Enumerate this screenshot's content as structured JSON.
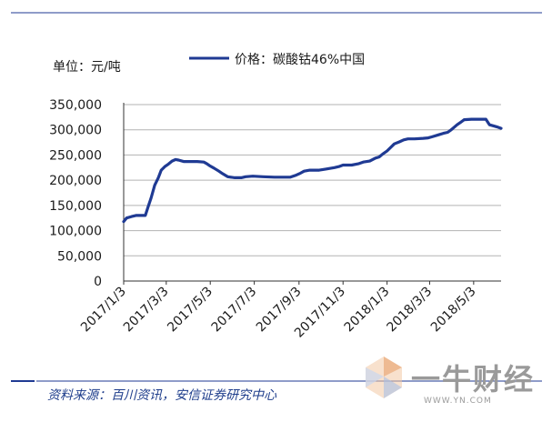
{
  "unit_label": "单位：元/吨",
  "source_text": "资料来源：百川资讯，安信证券研究中心",
  "watermark": {
    "text": "一牛财经",
    "url": "WWW.YN.COM"
  },
  "colors": {
    "series": "#1f3a93",
    "frame": "#1f3a93",
    "grid": "#b3b3b3"
  },
  "chart_data": {
    "type": "line",
    "ylim": [
      0,
      350000
    ],
    "yticks": [
      0,
      50000,
      100000,
      150000,
      200000,
      250000,
      300000,
      350000
    ],
    "ytick_labels": [
      "0",
      "50,000",
      "100,000",
      "150,000",
      "200,000",
      "250,000",
      "300,000",
      "350,000"
    ],
    "xlim": [
      "2017-01-03",
      "2018-06-10"
    ],
    "xticks": [
      "2017-01-03",
      "2017-03-03",
      "2017-05-03",
      "2017-07-03",
      "2017-09-03",
      "2017-11-03",
      "2018-01-03",
      "2018-03-03",
      "2018-05-03"
    ],
    "xtick_labels": [
      "2017/1/3",
      "2017/3/3",
      "2017/5/3",
      "2017/7/3",
      "2017/9/3",
      "2017/11/3",
      "2018/1/3",
      "2018/3/3",
      "2018/5/3"
    ],
    "grid": true,
    "legend_position": "top",
    "series": [
      {
        "name": "价格：碳酸钴46%中国",
        "x": [
          "2017-01-03",
          "2017-01-07",
          "2017-01-14",
          "2017-01-20",
          "2017-02-02",
          "2017-02-06",
          "2017-02-10",
          "2017-02-15",
          "2017-02-20",
          "2017-02-24",
          "2017-03-01",
          "2017-03-06",
          "2017-03-11",
          "2017-03-16",
          "2017-03-20",
          "2017-03-27",
          "2017-04-05",
          "2017-04-15",
          "2017-04-24",
          "2017-04-28",
          "2017-05-02",
          "2017-05-08",
          "2017-05-15",
          "2017-05-20",
          "2017-05-27",
          "2017-06-06",
          "2017-06-15",
          "2017-06-21",
          "2017-07-01",
          "2017-07-15",
          "2017-07-31",
          "2017-08-10",
          "2017-08-22",
          "2017-08-30",
          "2017-09-05",
          "2017-09-10",
          "2017-09-18",
          "2017-09-25",
          "2017-10-01",
          "2017-10-10",
          "2017-10-22",
          "2017-10-28",
          "2017-11-03",
          "2017-11-15",
          "2017-11-25",
          "2017-12-01",
          "2017-12-10",
          "2017-12-18",
          "2017-12-23",
          "2017-12-28",
          "2018-01-03",
          "2018-01-08",
          "2018-01-13",
          "2018-01-20",
          "2018-01-26",
          "2018-02-01",
          "2018-02-10",
          "2018-02-22",
          "2018-03-01",
          "2018-03-06",
          "2018-03-15",
          "2018-03-22",
          "2018-03-28",
          "2018-04-02",
          "2018-04-06",
          "2018-04-10",
          "2018-04-15",
          "2018-04-20",
          "2018-04-30",
          "2018-05-10",
          "2018-05-20",
          "2018-05-25",
          "2018-06-04",
          "2018-06-10"
        ],
        "values": [
          118000,
          125000,
          128000,
          130000,
          130000,
          148000,
          165000,
          190000,
          205000,
          220000,
          227000,
          232000,
          238000,
          241000,
          240000,
          237000,
          237000,
          237000,
          236000,
          233000,
          229000,
          224000,
          218000,
          213000,
          207000,
          205000,
          205000,
          207000,
          208000,
          207000,
          206000,
          206000,
          206000,
          210000,
          214000,
          218000,
          220000,
          220000,
          220000,
          222000,
          225000,
          227000,
          230000,
          230000,
          233000,
          236000,
          238000,
          244000,
          246000,
          252000,
          258000,
          265000,
          272000,
          276000,
          280000,
          282000,
          282000,
          283000,
          284000,
          286000,
          290000,
          293000,
          295000,
          300000,
          305000,
          310000,
          315000,
          320000,
          321000,
          321000,
          321000,
          310000,
          306000,
          303000
        ]
      }
    ]
  }
}
